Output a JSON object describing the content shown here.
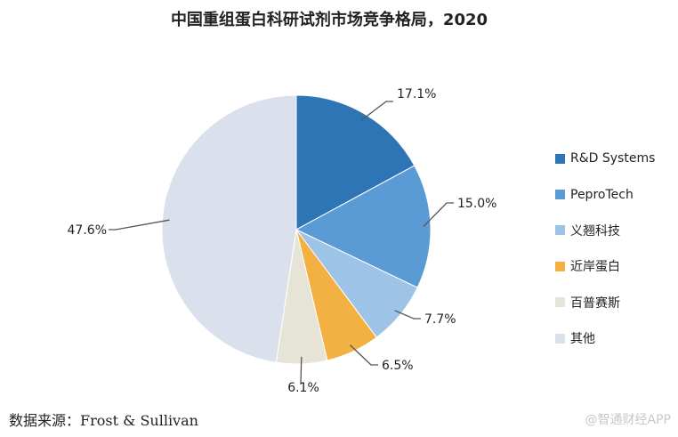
{
  "chart_data": {
    "type": "pie",
    "title": "中国重组蛋白科研试剂市场竞争格局，2020",
    "slices": [
      {
        "name": "R&D Systems",
        "value": 17.1,
        "label": "17.1%",
        "color": "#2e75b6"
      },
      {
        "name": "PeproTech",
        "value": 15.0,
        "label": "15.0%",
        "color": "#5b9bd5"
      },
      {
        "name": "义翘科技",
        "value": 7.7,
        "label": "7.7%",
        "color": "#9dc3e6"
      },
      {
        "name": "近岸蛋白",
        "value": 6.5,
        "label": "6.5%",
        "color": "#f4b143"
      },
      {
        "name": "百普赛斯",
        "value": 6.1,
        "label": "6.1%",
        "color": "#e6e4d6"
      },
      {
        "name": "其他",
        "value": 47.6,
        "label": "47.6%",
        "color": "#dae1ec"
      }
    ],
    "start": "12 o'clock",
    "direction": "clockwise",
    "legend_position": "right"
  },
  "source_note": "数据来源：Frost & Sullivan",
  "watermark": "@智通财经APP"
}
